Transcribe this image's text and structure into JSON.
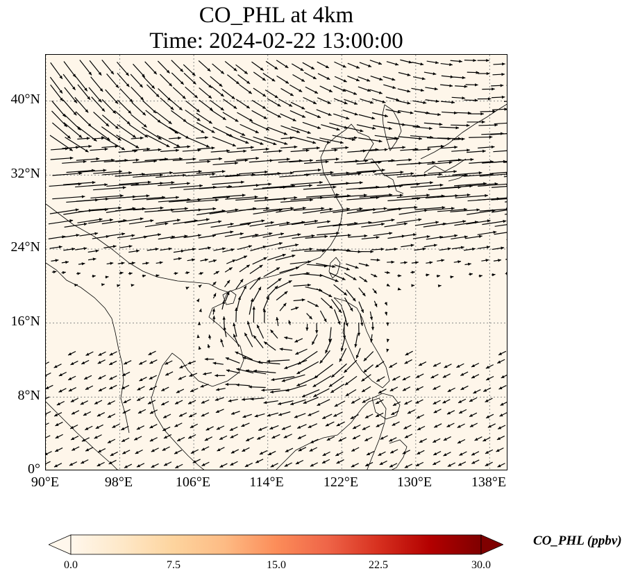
{
  "title": {
    "line1": "CO_PHL at 4km",
    "line2": "Time: 2024-02-22 13:00:00"
  },
  "map": {
    "extent": {
      "lon_min": 90,
      "lon_max": 140,
      "lat_min": 0,
      "lat_max": 45
    },
    "background_color": "#fef6ea",
    "coastline_color": "#000000",
    "gridline_color": "#888888",
    "gridlines": "dotted",
    "lat_ticks": [
      {
        "value": 0,
        "label": "0°"
      },
      {
        "value": 8,
        "label": "8°N"
      },
      {
        "value": 16,
        "label": "16°N"
      },
      {
        "value": 24,
        "label": "24°N"
      },
      {
        "value": 32,
        "label": "32°N"
      },
      {
        "value": 40,
        "label": "40°N"
      }
    ],
    "lon_ticks": [
      {
        "value": 90,
        "label": "90°E"
      },
      {
        "value": 98,
        "label": "98°E"
      },
      {
        "value": 106,
        "label": "106°E"
      },
      {
        "value": 114,
        "label": "114°E"
      },
      {
        "value": 122,
        "label": "122°E"
      },
      {
        "value": 130,
        "label": "130°E"
      },
      {
        "value": 138,
        "label": "138°E"
      }
    ],
    "wind_vectors": "black quiver arrows; strong westerly jet ~22–36°N, anticyclonic swirl centered near 117°E 16°N, weak northeasterlies south of 12°N"
  },
  "colorbar": {
    "label": "CO_PHL (ppbv)",
    "min": 0.0,
    "max": 30.0,
    "extend": "both",
    "colormap": "OrRd",
    "colors": [
      "#fff7ec",
      "#fee8c8",
      "#fdd49e",
      "#fdbb84",
      "#fc8d59",
      "#ef6548",
      "#d7301f",
      "#b30000",
      "#7f0000"
    ],
    "ticks": [
      {
        "value": 0.0,
        "label": "0.0"
      },
      {
        "value": 7.5,
        "label": "7.5"
      },
      {
        "value": 15.0,
        "label": "15.0"
      },
      {
        "value": 22.5,
        "label": "22.5"
      },
      {
        "value": 30.0,
        "label": "30.0"
      }
    ]
  }
}
